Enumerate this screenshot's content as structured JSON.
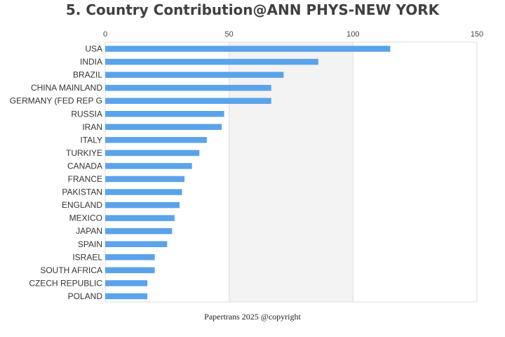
{
  "colors": {
    "bar": "#5aa3ea",
    "band": "#f3f3f3",
    "grid": "#dddddd",
    "text": "#404040"
  },
  "chart_data": {
    "type": "bar",
    "orientation": "horizontal",
    "title": "5. Country Contribution@ANN PHYS-NEW YORK",
    "xlabel": "",
    "ylabel": "",
    "xlim": [
      0,
      150
    ],
    "xticks": [
      0,
      50,
      100,
      150
    ],
    "x_axis_position": "top",
    "grid": true,
    "legend": "none",
    "categories": [
      "USA",
      "INDIA",
      "BRAZIL",
      "CHINA MAINLAND",
      "GERMANY (FED REP G",
      "RUSSIA",
      "IRAN",
      "ITALY",
      "TURKIYE",
      "CANADA",
      "FRANCE",
      "PAKISTAN",
      "ENGLAND",
      "MEXICO",
      "JAPAN",
      "SPAIN",
      "ISRAEL",
      "SOUTH AFRICA",
      "CZECH REPUBLIC",
      "POLAND"
    ],
    "values": [
      115,
      86,
      72,
      67,
      67,
      48,
      47,
      41,
      38,
      35,
      32,
      31,
      30,
      28,
      27,
      25,
      20,
      20,
      17,
      17
    ]
  },
  "footer": "Papertrans 2025 @copyright"
}
